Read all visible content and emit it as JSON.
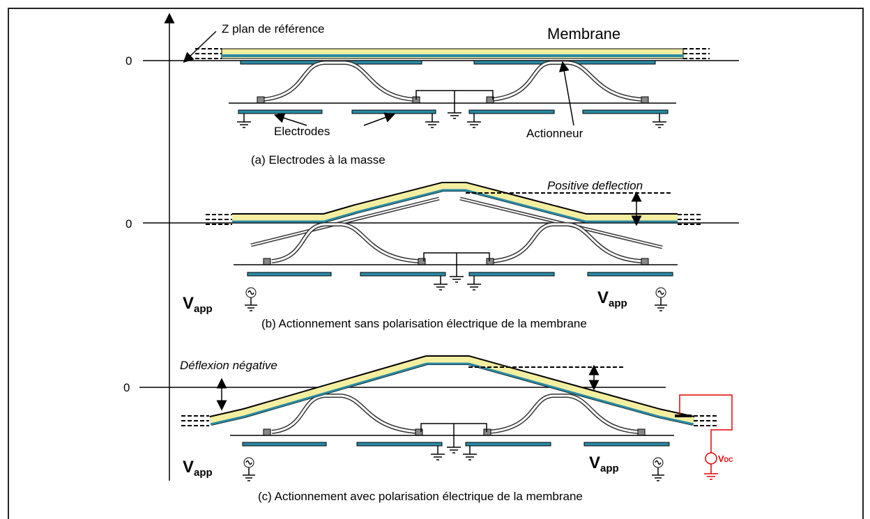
{
  "labels": {
    "z_reference": "Z plan de référence",
    "membrane": "Membrane",
    "electrodes": "Electrodes",
    "actuator": "Actionneur",
    "positive": "Positive deflection",
    "negative": "Déflexion négative",
    "v": "V",
    "app": "app",
    "dc": "DC"
  },
  "panels": [
    {
      "zero": "0",
      "caption": "(a) Electrodes à la masse"
    },
    {
      "zero": "0",
      "caption": "(b) Actionnement sans polarisation électrique de la membrane"
    },
    {
      "zero": "0",
      "caption": "(c) Actionnement avec polarisation électrique de la membrane"
    }
  ]
}
